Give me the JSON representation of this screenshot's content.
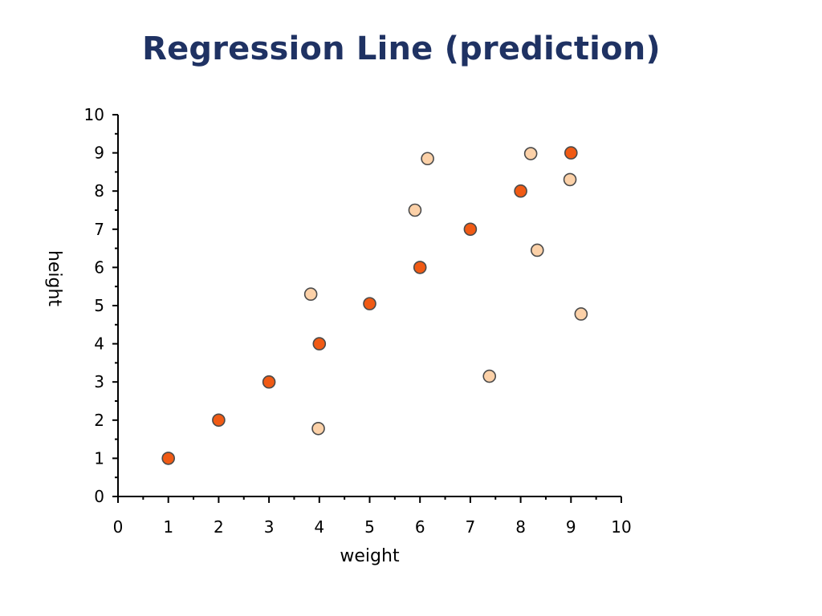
{
  "title": "Regression Line (prediction)",
  "colors": {
    "title": "#1f3263",
    "dark_point": "#f05a14",
    "light_point": "#fcd1a8",
    "point_stroke": "#4a4a4a",
    "axis": "#000000"
  },
  "chart_data": {
    "type": "scatter",
    "title": "",
    "xlabel": "weight",
    "ylabel": "height",
    "xlim": [
      0,
      10
    ],
    "ylim": [
      0,
      10
    ],
    "xticks": [
      0,
      1,
      2,
      3,
      4,
      5,
      6,
      7,
      8,
      9,
      10
    ],
    "yticks": [
      0,
      1,
      2,
      3,
      4,
      5,
      6,
      7,
      8,
      9,
      10
    ],
    "grid": false,
    "legend": "none",
    "series": [
      {
        "color": "#f05a14",
        "points": [
          {
            "x": 1,
            "y": 1
          },
          {
            "x": 2,
            "y": 2
          },
          {
            "x": 3,
            "y": 3
          },
          {
            "x": 4,
            "y": 4
          },
          {
            "x": 5,
            "y": 5.05
          },
          {
            "x": 6,
            "y": 6
          },
          {
            "x": 7,
            "y": 7
          },
          {
            "x": 8,
            "y": 8
          },
          {
            "x": 9,
            "y": 9
          }
        ]
      },
      {
        "color": "#fcd1a8",
        "points": [
          {
            "x": 3.83,
            "y": 5.3
          },
          {
            "x": 3.98,
            "y": 1.78
          },
          {
            "x": 5.9,
            "y": 7.5
          },
          {
            "x": 6.15,
            "y": 8.85
          },
          {
            "x": 7.38,
            "y": 3.15
          },
          {
            "x": 8.2,
            "y": 8.98
          },
          {
            "x": 8.33,
            "y": 6.45
          },
          {
            "x": 8.98,
            "y": 8.3
          },
          {
            "x": 9.2,
            "y": 4.78
          }
        ]
      }
    ]
  }
}
